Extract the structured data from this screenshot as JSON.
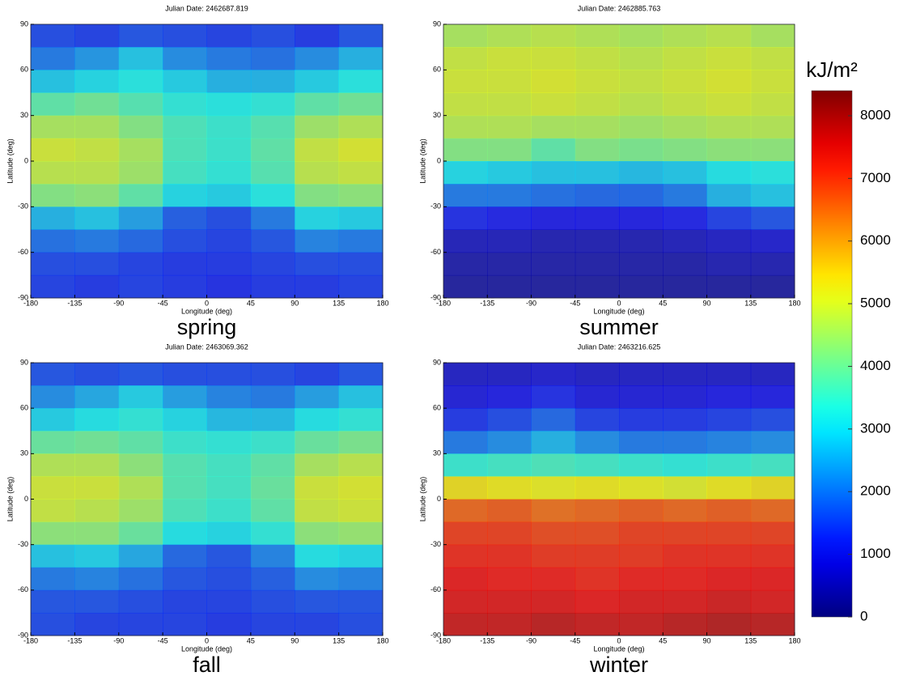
{
  "chart_data": [
    {
      "type": "heatmap",
      "title": "Julian Date:  2462687.819",
      "label": "spring",
      "xlabel": "Longitude (deg)",
      "ylabel": "Latitude (deg)",
      "xlim": [
        -180,
        180
      ],
      "ylim": [
        -90,
        90
      ],
      "xticks": [
        -180,
        -135,
        -90,
        -45,
        0,
        45,
        90,
        135,
        180
      ],
      "yticks": [
        -90,
        -60,
        -30,
        0,
        30,
        60,
        90
      ],
      "values": [
        [
          1500,
          1400,
          1600,
          1500,
          1400,
          1500,
          1300,
          1600
        ],
        [
          2000,
          2300,
          2800,
          2200,
          2000,
          1900,
          2200,
          2600
        ],
        [
          2800,
          3000,
          3200,
          2900,
          2600,
          2600,
          2900,
          3200
        ],
        [
          3800,
          4000,
          3700,
          3300,
          3200,
          3300,
          3800,
          4000
        ],
        [
          4600,
          4600,
          4200,
          3600,
          3400,
          3700,
          4500,
          4700
        ],
        [
          5000,
          4900,
          4600,
          3600,
          3400,
          3800,
          4900,
          5100
        ],
        [
          4800,
          4800,
          4500,
          3500,
          3300,
          3700,
          4800,
          4900
        ],
        [
          4200,
          4300,
          3800,
          3000,
          2900,
          3200,
          4200,
          4300
        ],
        [
          2600,
          2800,
          2400,
          1700,
          1500,
          2000,
          3000,
          2900
        ],
        [
          1900,
          2000,
          1800,
          1500,
          1400,
          1600,
          2100,
          2000
        ],
        [
          1500,
          1500,
          1400,
          1300,
          1300,
          1400,
          1500,
          1500
        ],
        [
          1400,
          1300,
          1400,
          1300,
          1200,
          1300,
          1300,
          1400
        ]
      ]
    },
    {
      "type": "heatmap",
      "title": "Julian Date:  2462885.763",
      "label": "summer",
      "xlabel": "Longitude (deg)",
      "ylabel": "Latitude (deg)",
      "xlim": [
        -180,
        180
      ],
      "ylim": [
        -90,
        90
      ],
      "xticks": [
        -180,
        -135,
        -90,
        -45,
        0,
        45,
        90,
        135,
        180
      ],
      "yticks": [
        -90,
        -60,
        -30,
        0,
        30,
        60,
        90
      ],
      "values": [
        [
          4600,
          4700,
          4800,
          4700,
          4600,
          4700,
          4800,
          4600
        ],
        [
          4900,
          5000,
          5000,
          4900,
          4800,
          4900,
          5000,
          4900
        ],
        [
          5000,
          5000,
          5100,
          5000,
          4900,
          5000,
          5100,
          5000
        ],
        [
          4900,
          4900,
          5000,
          4900,
          4800,
          4900,
          5000,
          4900
        ],
        [
          4700,
          4700,
          4600,
          4600,
          4500,
          4600,
          4700,
          4700
        ],
        [
          4200,
          4200,
          3800,
          4200,
          4100,
          4200,
          4300,
          4300
        ],
        [
          3000,
          2900,
          2800,
          2800,
          2700,
          2800,
          3100,
          3200
        ],
        [
          2000,
          2000,
          1900,
          1800,
          1800,
          2000,
          2600,
          2800
        ],
        [
          1200,
          1100,
          1000,
          1000,
          1000,
          1100,
          1400,
          1600
        ],
        [
          600,
          600,
          500,
          500,
          500,
          600,
          700,
          800
        ],
        [
          400,
          400,
          400,
          400,
          400,
          400,
          500,
          500
        ],
        [
          300,
          300,
          300,
          300,
          300,
          300,
          300,
          300
        ]
      ]
    },
    {
      "type": "heatmap",
      "title": "Julian Date:  2463069.362",
      "label": "fall",
      "xlabel": "Longitude (deg)",
      "ylabel": "Latitude (deg)",
      "xlim": [
        -180,
        180
      ],
      "ylim": [
        -90,
        90
      ],
      "xticks": [
        -180,
        -135,
        -90,
        -45,
        0,
        45,
        90,
        135,
        180
      ],
      "yticks": [
        -90,
        -60,
        -30,
        0,
        30,
        60,
        90
      ],
      "values": [
        [
          1600,
          1500,
          1600,
          1500,
          1500,
          1500,
          1400,
          1600
        ],
        [
          2200,
          2500,
          2900,
          2400,
          2100,
          2000,
          2400,
          2800
        ],
        [
          2900,
          3100,
          3300,
          3000,
          2700,
          2700,
          3100,
          3300
        ],
        [
          3900,
          4000,
          3800,
          3400,
          3300,
          3400,
          3900,
          4100
        ],
        [
          4700,
          4700,
          4300,
          3700,
          3500,
          3800,
          4600,
          4800
        ],
        [
          5000,
          5000,
          4700,
          3700,
          3500,
          3900,
          5000,
          5100
        ],
        [
          4900,
          4800,
          4500,
          3600,
          3400,
          3800,
          4900,
          5000
        ],
        [
          4300,
          4300,
          3900,
          3100,
          3000,
          3300,
          4300,
          4400
        ],
        [
          2800,
          2900,
          2500,
          1800,
          1600,
          2100,
          3100,
          3000
        ],
        [
          2000,
          2100,
          1900,
          1600,
          1500,
          1700,
          2200,
          2100
        ],
        [
          1600,
          1600,
          1500,
          1400,
          1400,
          1500,
          1600,
          1600
        ],
        [
          1500,
          1400,
          1400,
          1400,
          1300,
          1400,
          1400,
          1500
        ]
      ]
    },
    {
      "type": "heatmap",
      "title": "Julian Date:  2463216.625",
      "label": "winter",
      "xlabel": "Longitude (deg)",
      "ylabel": "Latitude (deg)",
      "xlim": [
        -180,
        180
      ],
      "ylim": [
        -90,
        90
      ],
      "xticks": [
        -180,
        -135,
        -90,
        -45,
        0,
        45,
        90,
        135,
        180
      ],
      "yticks": [
        -90,
        -60,
        -30,
        0,
        30,
        60,
        90
      ],
      "values": [
        [
          700,
          700,
          800,
          700,
          700,
          700,
          700,
          700
        ],
        [
          900,
          1000,
          1200,
          900,
          900,
          900,
          1000,
          1000
        ],
        [
          1300,
          1500,
          1800,
          1400,
          1300,
          1300,
          1400,
          1500
        ],
        [
          2000,
          2200,
          2600,
          2200,
          2000,
          2000,
          2100,
          2200
        ],
        [
          3400,
          3500,
          3600,
          3500,
          3400,
          3300,
          3400,
          3500
        ],
        [
          5400,
          5300,
          5200,
          5300,
          5200,
          5100,
          5300,
          5400
        ],
        [
          6600,
          6700,
          6500,
          6600,
          6700,
          6600,
          6700,
          6600
        ],
        [
          7000,
          7000,
          6900,
          6900,
          7000,
          7000,
          7000,
          7000
        ],
        [
          7200,
          7200,
          7100,
          7100,
          7100,
          7200,
          7200,
          7200
        ],
        [
          7400,
          7300,
          7300,
          7200,
          7300,
          7300,
          7400,
          7400
        ],
        [
          7500,
          7500,
          7500,
          7400,
          7500,
          7500,
          7600,
          7500
        ],
        [
          7700,
          7700,
          7800,
          7700,
          7700,
          7800,
          7900,
          7800
        ]
      ]
    },
    {
      "type": "colorbar",
      "title": "kJ/m²",
      "colormap": "jet",
      "clim": [
        0,
        8400
      ],
      "ticks": [
        0,
        1000,
        2000,
        3000,
        4000,
        5000,
        6000,
        7000,
        8000
      ]
    }
  ]
}
